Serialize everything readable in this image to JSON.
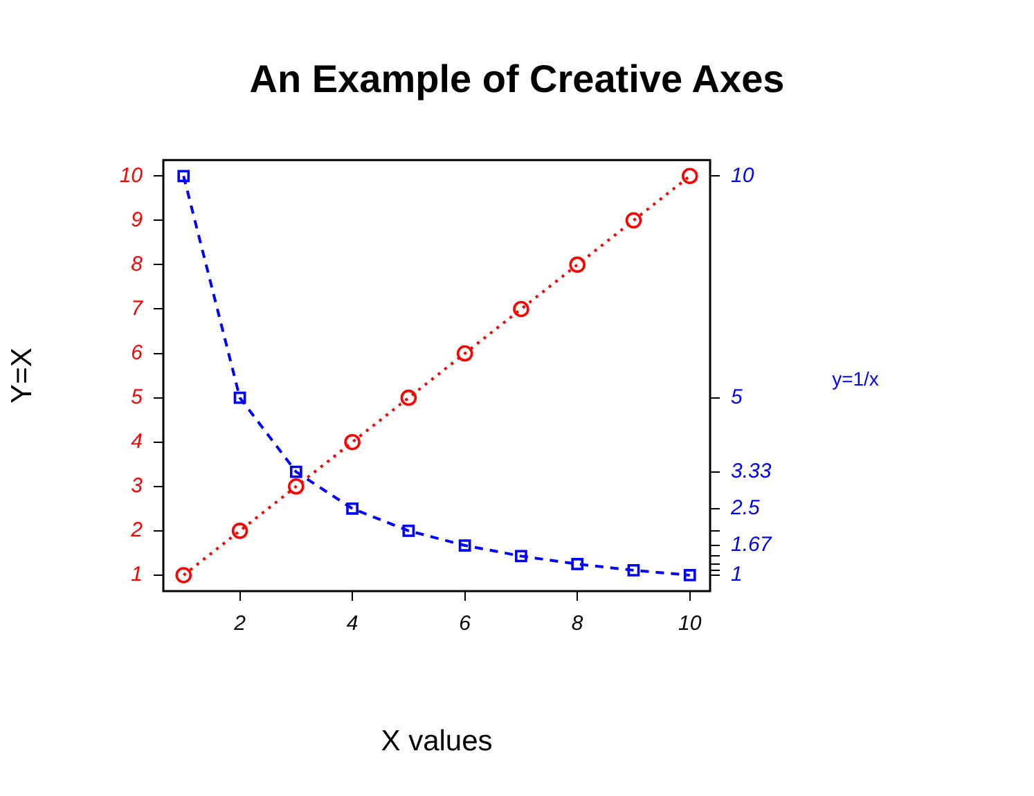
{
  "chart_data": {
    "type": "line",
    "title": "An Example of Creative Axes",
    "xlabel": "X values",
    "ylabel": "Y=X",
    "y2label": "y=1/x",
    "x": [
      1,
      2,
      3,
      4,
      5,
      6,
      7,
      8,
      9,
      10
    ],
    "series": [
      {
        "color": "#ff0000",
        "values": [
          1,
          2,
          3,
          4,
          5,
          6,
          7,
          8,
          9,
          10
        ],
        "marker": "circle",
        "line_style": "dotted"
      },
      {
        "color": "#0000ff",
        "values": [
          10,
          5,
          3.33,
          2.5,
          2,
          1.67,
          1.43,
          1.25,
          1.11,
          1
        ],
        "marker": "square",
        "line_style": "dashed",
        "axis": "y2"
      }
    ],
    "xlim": [
      0.64,
      10.36
    ],
    "ylim": [
      0.64,
      10.36
    ],
    "y2lim": [
      0.64,
      10.36
    ],
    "xticks": [
      2,
      4,
      6,
      8,
      10
    ],
    "yticks": [
      1,
      2,
      3,
      4,
      5,
      6,
      7,
      8,
      9,
      10
    ],
    "y2ticks": [
      10,
      5,
      3.33,
      2.5,
      {
        "value": 2,
        "label": null
      },
      1.67,
      {
        "value": 1.43,
        "label": null
      },
      {
        "value": 1.25,
        "label": null
      },
      {
        "value": 1.11,
        "label": null
      },
      1
    ],
    "grid": false,
    "legend": false
  }
}
